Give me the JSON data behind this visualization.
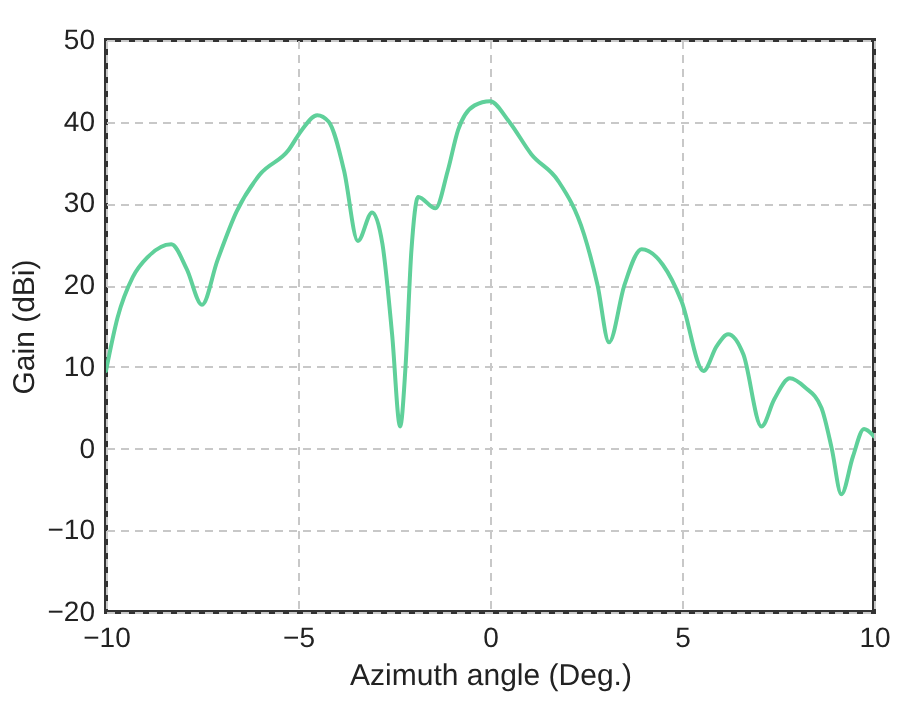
{
  "chart_data": {
    "type": "line",
    "xlabel": "Azimuth angle (Deg.)",
    "ylabel": "Gain (dBi)",
    "xlim": [
      -10,
      10
    ],
    "ylim": [
      -20,
      50
    ],
    "xticks": [
      -10,
      -5,
      0,
      5,
      10
    ],
    "yticks": [
      -20,
      -10,
      0,
      10,
      20,
      30,
      40,
      50
    ],
    "grid": true,
    "line_style": "solid",
    "marker": "none",
    "series": [
      {
        "color": "#5fd09a",
        "x": [
          -10,
          -9.7,
          -9.3,
          -8.9,
          -8.3,
          -7.9,
          -7.5,
          -7.1,
          -6.6,
          -6.0,
          -5.25,
          -4.9,
          -4.5,
          -4.2,
          -3.8,
          -3.44,
          -3.07,
          -2.8,
          -2.55,
          -2.34,
          -2.2,
          -2.05,
          -1.87,
          -1.42,
          -1.1,
          -0.83,
          -0.4,
          0,
          0.5,
          1.08,
          1.77,
          2.45,
          2.8,
          3.1,
          3.5,
          3.95,
          4.5,
          4.99,
          5.56,
          5.9,
          6.2,
          6.6,
          7.07,
          7.4,
          7.81,
          8.2,
          8.63,
          8.9,
          9.15,
          9.45,
          9.74,
          10
        ],
        "values": [
          9.5,
          16,
          21,
          23.5,
          25,
          22,
          17.6,
          23,
          29,
          33.5,
          36.5,
          39,
          40.8,
          40,
          34,
          25.4,
          28.9,
          25,
          14,
          2.7,
          10,
          24,
          30.8,
          29.4,
          34,
          39,
          42,
          42.5,
          40,
          36,
          32.8,
          26.2,
          20,
          13,
          20,
          24.4,
          22.5,
          18,
          9.5,
          12.5,
          14,
          11.5,
          2.7,
          6,
          8.6,
          7.5,
          5,
          0,
          -5.6,
          -1,
          2.4,
          1.5
        ]
      }
    ]
  }
}
